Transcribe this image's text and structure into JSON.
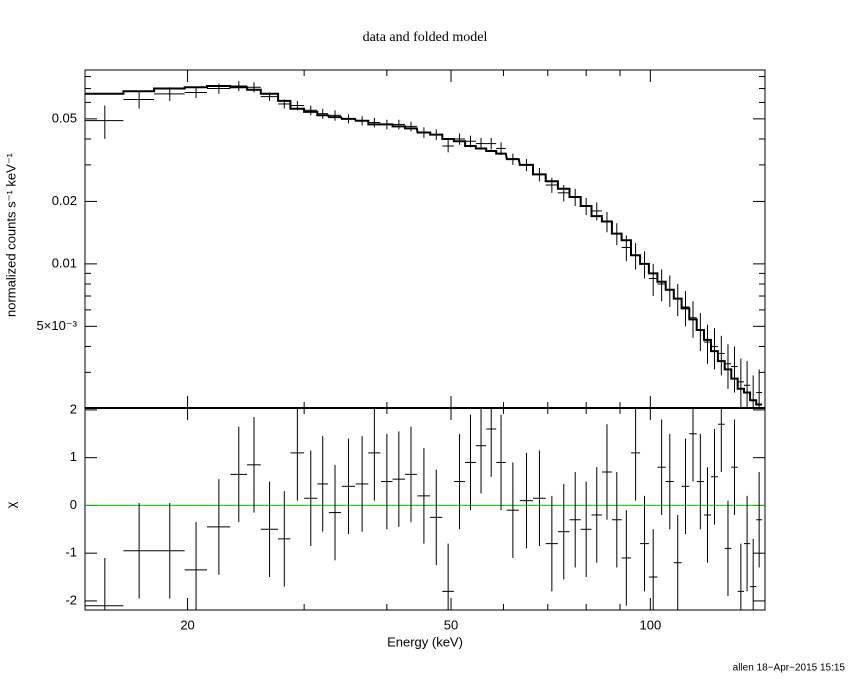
{
  "chart_data": {
    "type": "spectrum",
    "title": "data and folded model",
    "x_label": "Energy (keV)",
    "y_label": "normalized counts s⁻¹ keV⁻¹",
    "y2_label": "χ",
    "footer": "allen 18−Apr−2015 15:15",
    "xlog": true,
    "ylog": true,
    "xlim": [
      14,
      149
    ],
    "ylim": [
      0.00202,
      0.086
    ],
    "y2lim": [
      -2.19,
      2.04
    ],
    "xticks": [
      20,
      50,
      100
    ],
    "xminorticks": [
      30,
      40,
      60,
      70,
      80,
      90
    ],
    "yticks": [
      0.05,
      0.02,
      0.01,
      {
        "value": 0.005,
        "label": "5×10⁻³"
      }
    ],
    "yminorticks": [
      0.003,
      0.004,
      0.006,
      0.007,
      0.008,
      0.009,
      0.03,
      0.04,
      0.06,
      0.07,
      0.08
    ],
    "y2ticks": [
      2,
      1,
      0,
      -1,
      -2
    ],
    "data_color": "#000000",
    "model_color": "#000000",
    "reference_line": 0,
    "reference_color": "#00cc00",
    "x": [
      15.0,
      16.9,
      18.8,
      20.6,
      22.3,
      23.9,
      25.2,
      26.6,
      28.0,
      29.3,
      30.7,
      32.0,
      33.4,
      35.0,
      36.7,
      38.3,
      40.0,
      41.7,
      43.5,
      45.5,
      47.5,
      49.5,
      51.5,
      53.5,
      55.5,
      57.5,
      59.5,
      62,
      65,
      68,
      71,
      74,
      77,
      80,
      83,
      86,
      89,
      92,
      95,
      98,
      101,
      104,
      107,
      110,
      113,
      116,
      119,
      122,
      125,
      128,
      131,
      134,
      137,
      140,
      143,
      146
    ],
    "xerr": [
      1.0,
      0.9,
      1.0,
      0.8,
      0.9,
      0.7,
      0.6,
      0.8,
      0.6,
      0.7,
      0.7,
      0.6,
      0.7,
      0.8,
      0.8,
      0.8,
      0.8,
      0.9,
      0.9,
      1.0,
      1.0,
      1.0,
      1.0,
      1.0,
      1.0,
      1.0,
      1.0,
      1.3,
      1.5,
      1.5,
      1.5,
      1.5,
      1.5,
      1.5,
      1.5,
      1.5,
      1.5,
      1.5,
      1.5,
      1.5,
      1.5,
      1.5,
      1.5,
      1.5,
      1.5,
      1.5,
      1.5,
      1.5,
      1.5,
      1.5,
      1.5,
      1.5,
      1.5,
      1.5,
      1.5,
      1.5
    ],
    "y": [
      0.049,
      0.062,
      0.066,
      0.067,
      0.07,
      0.072,
      0.071,
      0.064,
      0.059,
      0.058,
      0.055,
      0.053,
      0.052,
      0.05,
      0.049,
      0.048,
      0.047,
      0.047,
      0.046,
      0.043,
      0.042,
      0.037,
      0.04,
      0.039,
      0.038,
      0.038,
      0.036,
      0.032,
      0.03,
      0.027,
      0.024,
      0.022,
      0.021,
      0.019,
      0.018,
      0.016,
      0.014,
      0.012,
      0.011,
      0.01,
      0.0085,
      0.008,
      0.0075,
      0.0068,
      0.0062,
      0.0055,
      0.0048,
      0.0042,
      0.004,
      0.0037,
      0.0033,
      0.0032,
      0.0027,
      0.0026,
      0.0022,
      0.0024
    ],
    "yerr": [
      0.009,
      0.006,
      0.005,
      0.004,
      0.004,
      0.004,
      0.004,
      0.003,
      0.003,
      0.003,
      0.003,
      0.003,
      0.003,
      0.0025,
      0.0025,
      0.0025,
      0.0025,
      0.0025,
      0.0025,
      0.0025,
      0.0025,
      0.0025,
      0.0025,
      0.0025,
      0.0025,
      0.0025,
      0.0025,
      0.002,
      0.002,
      0.002,
      0.002,
      0.002,
      0.002,
      0.0018,
      0.0018,
      0.0018,
      0.0017,
      0.0017,
      0.0016,
      0.0015,
      0.0015,
      0.0014,
      0.0013,
      0.0012,
      0.0012,
      0.0011,
      0.001,
      0.0009,
      0.0009,
      0.0008,
      0.0008,
      0.0008,
      0.0008,
      0.0008,
      0.0007,
      0.0007
    ],
    "model": [
      0.066,
      0.068,
      0.07,
      0.071,
      0.072,
      0.071,
      0.069,
      0.066,
      0.061,
      0.056,
      0.054,
      0.052,
      0.051,
      0.05,
      0.049,
      0.047,
      0.047,
      0.046,
      0.045,
      0.043,
      0.042,
      0.04,
      0.039,
      0.037,
      0.036,
      0.035,
      0.034,
      0.032,
      0.03,
      0.027,
      0.025,
      0.023,
      0.021,
      0.019,
      0.017,
      0.016,
      0.014,
      0.013,
      0.011,
      0.01,
      0.009,
      0.0082,
      0.0075,
      0.0068,
      0.0061,
      0.0054,
      0.0048,
      0.0043,
      0.0038,
      0.0034,
      0.0031,
      0.0028,
      0.0025,
      0.0024,
      0.0022,
      0.0021
    ],
    "chi": [
      -2.1,
      -0.95,
      -0.95,
      -1.35,
      -0.45,
      0.65,
      0.85,
      -0.5,
      -0.7,
      1.1,
      0.15,
      0.45,
      -0.15,
      0.4,
      0.45,
      1.1,
      0.5,
      0.55,
      0.65,
      0.2,
      -0.25,
      -1.8,
      0.5,
      0.9,
      1.25,
      1.6,
      0.9,
      -0.1,
      0.1,
      0.15,
      -0.8,
      -0.55,
      -0.3,
      -0.5,
      -0.2,
      0.7,
      -0.3,
      -1.1,
      1.1,
      -0.8,
      -1.5,
      0.8,
      0.5,
      -1.2,
      0.4,
      1.5,
      0.5,
      -0.2,
      0.6,
      1.7,
      -0.9,
      0.8,
      -1.8,
      -0.8,
      -1.7,
      -0.3
    ],
    "chi_err": [
      1,
      1,
      1,
      1,
      1,
      1,
      1,
      1,
      1,
      1,
      1,
      1,
      1,
      1,
      1,
      1,
      1,
      1,
      1,
      1,
      1,
      1,
      1,
      1,
      1,
      1,
      1,
      1,
      1,
      1,
      1,
      1,
      1,
      1,
      1,
      1,
      1,
      1,
      1,
      1,
      1,
      1,
      1,
      1,
      1,
      1,
      1,
      1,
      1,
      1,
      1,
      1,
      1,
      1,
      1,
      1
    ]
  }
}
